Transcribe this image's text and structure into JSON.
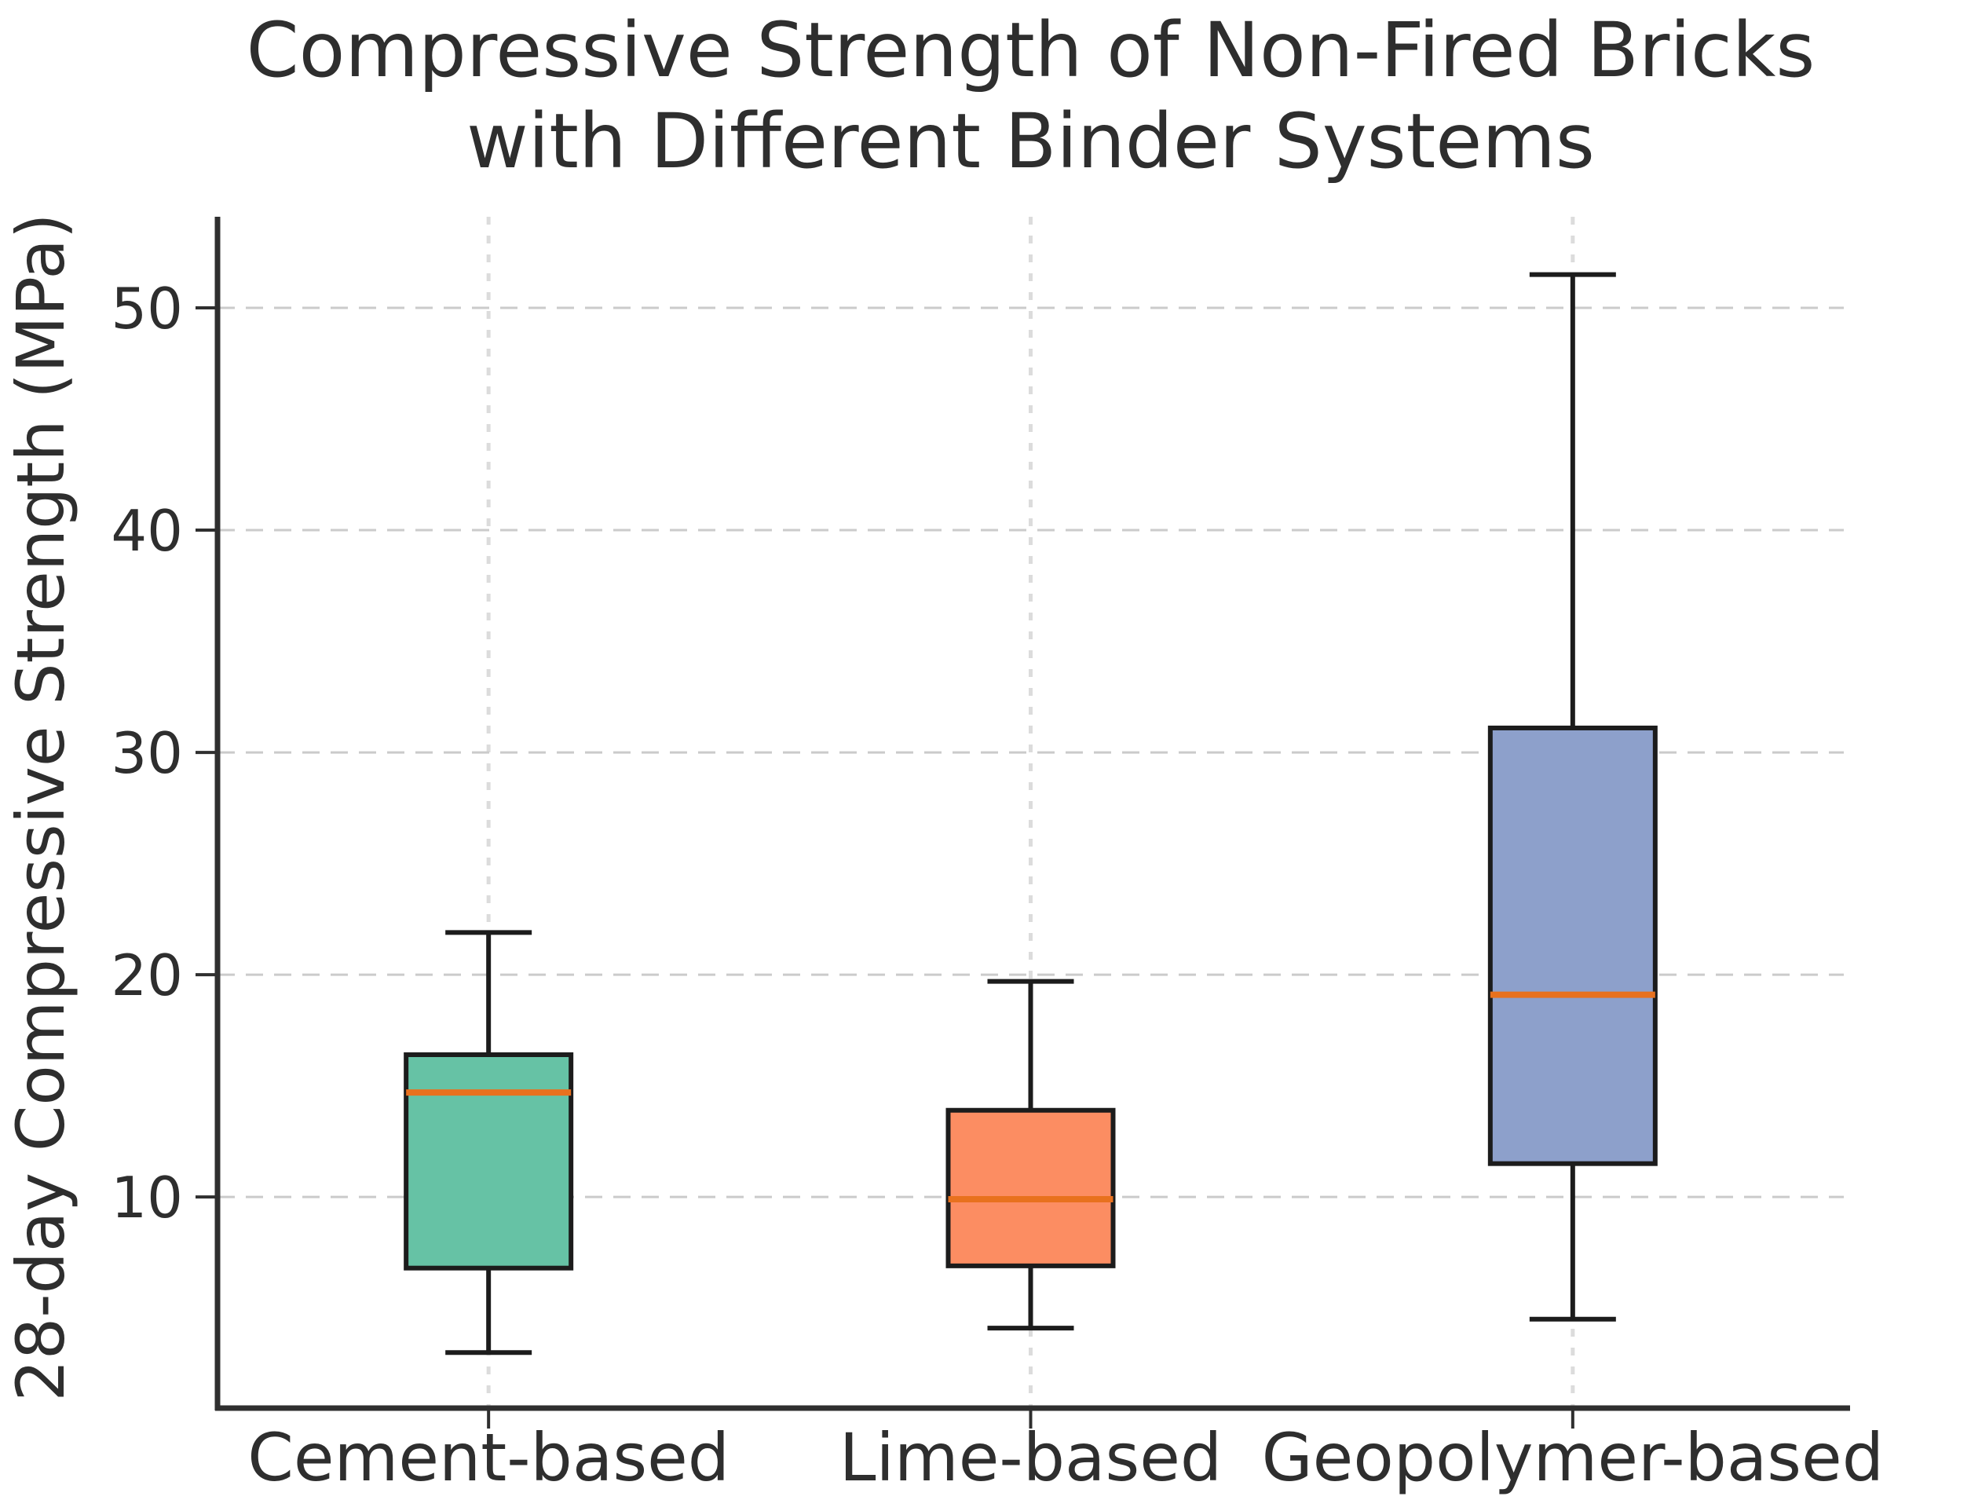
{
  "figure": {
    "title_line1": "Compressive Strength of Non-Fired Bricks",
    "title_line2": "with Different Binder Systems",
    "y_axis_label": "28-day Compressive Strength (MPa)"
  },
  "chart_data": {
    "type": "boxplot",
    "title": "Compressive Strength of Non-Fired Bricks with Different Binder Systems",
    "ylabel": "28-day Compressive Strength (MPa)",
    "xlabel": "",
    "categories": [
      "Cement-based",
      "Lime-based",
      "Geopolymer-based"
    ],
    "series": [
      {
        "name": "Cement-based",
        "whisker_low": 3.0,
        "q1": 6.8,
        "median": 14.7,
        "q3": 16.4,
        "whisker_high": 21.9,
        "fill_color": "#66C2A5"
      },
      {
        "name": "Lime-based",
        "whisker_low": 4.1,
        "q1": 6.9,
        "median": 9.9,
        "q3": 13.9,
        "whisker_high": 19.7,
        "fill_color": "#FC8D62"
      },
      {
        "name": "Geopolymer-based",
        "whisker_low": 4.5,
        "q1": 11.5,
        "median": 19.1,
        "q3": 31.1,
        "whisker_high": 51.5,
        "fill_color": "#8DA0CB"
      }
    ],
    "y_ticks": [
      10,
      20,
      30,
      40,
      50
    ],
    "ylim": [
      0.5,
      54.1
    ],
    "xlim": [
      0.5,
      3.5
    ],
    "grid": "dashed light-gray horizontal lines at y ticks and vertical lines at category centers",
    "legend": "none",
    "median_color": "#E8711E",
    "box_edge_color": "#1c1c1c",
    "whisker_color": "#1c1c1c",
    "grid_color_horizontal": "#cbcbcb",
    "grid_color_vertical": "#dcdcdc",
    "axis_color": "#2f2f2f",
    "text_color": "#2e2e2e"
  }
}
